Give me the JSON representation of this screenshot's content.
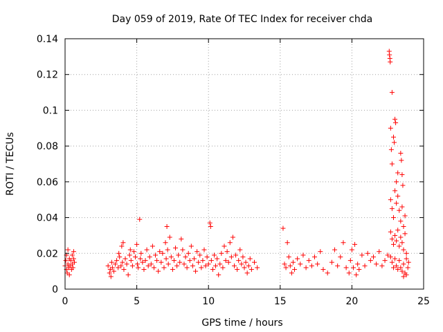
{
  "chart_data": {
    "type": "scatter",
    "title": "Day 059 of 2019, Rate Of TEC Index for receiver chda",
    "xlabel": "GPS time / hours",
    "ylabel": "ROTI / TECUs",
    "xlim": [
      0,
      25
    ],
    "ylim": [
      0,
      0.14
    ],
    "xticks": [
      "0",
      "5",
      "10",
      "15",
      "20",
      "25"
    ],
    "yticks": [
      "0",
      "0.02",
      "0.04",
      "0.06",
      "0.08",
      "0.1",
      "0.12",
      "0.14"
    ],
    "grid": true,
    "marker": "+",
    "colors": {
      "marker": "#ff0000",
      "grid": "#a0a0a0",
      "axes": "#000000"
    },
    "series": [
      {
        "points": [
          [
            0.0,
            0.013
          ],
          [
            0.05,
            0.016
          ],
          [
            0.1,
            0.011
          ],
          [
            0.1,
            0.019
          ],
          [
            0.15,
            0.009
          ],
          [
            0.2,
            0.014
          ],
          [
            0.2,
            0.022
          ],
          [
            0.25,
            0.012
          ],
          [
            0.3,
            0.017
          ],
          [
            0.3,
            0.008
          ],
          [
            0.35,
            0.013
          ],
          [
            0.4,
            0.016
          ],
          [
            0.45,
            0.011
          ],
          [
            0.5,
            0.019
          ],
          [
            0.5,
            0.014
          ],
          [
            0.55,
            0.012
          ],
          [
            0.6,
            0.017
          ],
          [
            0.6,
            0.021
          ],
          [
            0.65,
            0.015
          ],
          [
            3.0,
            0.013
          ],
          [
            3.1,
            0.009
          ],
          [
            3.15,
            0.011
          ],
          [
            3.2,
            0.007
          ],
          [
            3.25,
            0.015
          ],
          [
            3.3,
            0.012
          ],
          [
            3.4,
            0.01
          ],
          [
            3.5,
            0.014
          ],
          [
            3.6,
            0.016
          ],
          [
            3.7,
            0.012
          ],
          [
            3.75,
            0.02
          ],
          [
            3.8,
            0.018
          ],
          [
            3.9,
            0.013
          ],
          [
            3.95,
            0.024
          ],
          [
            4.0,
            0.015
          ],
          [
            4.05,
            0.026
          ],
          [
            4.1,
            0.011
          ],
          [
            4.2,
            0.017
          ],
          [
            4.3,
            0.014
          ],
          [
            4.4,
            0.008
          ],
          [
            4.5,
            0.019
          ],
          [
            4.55,
            0.022
          ],
          [
            4.6,
            0.016
          ],
          [
            4.7,
            0.013
          ],
          [
            4.8,
            0.021
          ],
          [
            4.9,
            0.018
          ],
          [
            5.0,
            0.025
          ],
          [
            5.05,
            0.014
          ],
          [
            5.1,
            0.012
          ],
          [
            5.2,
            0.039
          ],
          [
            5.25,
            0.017
          ],
          [
            5.3,
            0.02
          ],
          [
            5.4,
            0.015
          ],
          [
            5.5,
            0.011
          ],
          [
            5.6,
            0.016
          ],
          [
            5.7,
            0.022
          ],
          [
            5.8,
            0.013
          ],
          [
            5.9,
            0.018
          ],
          [
            6.0,
            0.014
          ],
          [
            6.1,
            0.024
          ],
          [
            6.2,
            0.012
          ],
          [
            6.3,
            0.019
          ],
          [
            6.4,
            0.016
          ],
          [
            6.5,
            0.01
          ],
          [
            6.6,
            0.021
          ],
          [
            6.7,
            0.015
          ],
          [
            6.8,
            0.02
          ],
          [
            6.9,
            0.012
          ],
          [
            7.0,
            0.026
          ],
          [
            7.05,
            0.017
          ],
          [
            7.1,
            0.035
          ],
          [
            7.15,
            0.022
          ],
          [
            7.2,
            0.014
          ],
          [
            7.3,
            0.029
          ],
          [
            7.4,
            0.018
          ],
          [
            7.5,
            0.011
          ],
          [
            7.6,
            0.016
          ],
          [
            7.7,
            0.023
          ],
          [
            7.8,
            0.013
          ],
          [
            7.9,
            0.019
          ],
          [
            8.0,
            0.015
          ],
          [
            8.1,
            0.028
          ],
          [
            8.2,
            0.022
          ],
          [
            8.3,
            0.014
          ],
          [
            8.4,
            0.018
          ],
          [
            8.5,
            0.012
          ],
          [
            8.6,
            0.02
          ],
          [
            8.7,
            0.016
          ],
          [
            8.8,
            0.024
          ],
          [
            8.9,
            0.013
          ],
          [
            9.0,
            0.017
          ],
          [
            9.1,
            0.01
          ],
          [
            9.2,
            0.021
          ],
          [
            9.3,
            0.015
          ],
          [
            9.4,
            0.019
          ],
          [
            9.5,
            0.012
          ],
          [
            9.6,
            0.016
          ],
          [
            9.7,
            0.022
          ],
          [
            9.8,
            0.013
          ],
          [
            9.9,
            0.018
          ],
          [
            10.0,
            0.014
          ],
          [
            10.1,
            0.037
          ],
          [
            10.15,
            0.035
          ],
          [
            10.2,
            0.016
          ],
          [
            10.3,
            0.011
          ],
          [
            10.4,
            0.019
          ],
          [
            10.5,
            0.013
          ],
          [
            10.6,
            0.017
          ],
          [
            10.7,
            0.008
          ],
          [
            10.8,
            0.014
          ],
          [
            10.9,
            0.02
          ],
          [
            11.0,
            0.012
          ],
          [
            11.1,
            0.024
          ],
          [
            11.2,
            0.016
          ],
          [
            11.3,
            0.021
          ],
          [
            11.4,
            0.015
          ],
          [
            11.5,
            0.026
          ],
          [
            11.6,
            0.018
          ],
          [
            11.7,
            0.029
          ],
          [
            11.8,
            0.013
          ],
          [
            11.9,
            0.019
          ],
          [
            12.0,
            0.011
          ],
          [
            12.1,
            0.016
          ],
          [
            12.2,
            0.022
          ],
          [
            12.3,
            0.014
          ],
          [
            12.4,
            0.018
          ],
          [
            12.5,
            0.012
          ],
          [
            12.6,
            0.015
          ],
          [
            12.7,
            0.009
          ],
          [
            12.8,
            0.013
          ],
          [
            12.9,
            0.017
          ],
          [
            13.0,
            0.011
          ],
          [
            13.2,
            0.015
          ],
          [
            13.4,
            0.012
          ],
          [
            15.2,
            0.034
          ],
          [
            15.3,
            0.014
          ],
          [
            15.4,
            0.012
          ],
          [
            15.5,
            0.026
          ],
          [
            15.6,
            0.018
          ],
          [
            15.7,
            0.013
          ],
          [
            15.8,
            0.009
          ],
          [
            15.9,
            0.015
          ],
          [
            16.0,
            0.011
          ],
          [
            16.2,
            0.017
          ],
          [
            16.4,
            0.014
          ],
          [
            16.6,
            0.019
          ],
          [
            16.8,
            0.012
          ],
          [
            17.0,
            0.016
          ],
          [
            17.2,
            0.013
          ],
          [
            17.4,
            0.018
          ],
          [
            17.6,
            0.014
          ],
          [
            17.8,
            0.021
          ],
          [
            18.0,
            0.011
          ],
          [
            18.3,
            0.009
          ],
          [
            18.6,
            0.015
          ],
          [
            18.8,
            0.022
          ],
          [
            19.0,
            0.013
          ],
          [
            19.2,
            0.018
          ],
          [
            19.4,
            0.026
          ],
          [
            19.6,
            0.012
          ],
          [
            19.8,
            0.009
          ],
          [
            19.9,
            0.016
          ],
          [
            20.0,
            0.022
          ],
          [
            20.1,
            0.012
          ],
          [
            20.2,
            0.025
          ],
          [
            20.3,
            0.008
          ],
          [
            20.4,
            0.014
          ],
          [
            20.5,
            0.011
          ],
          [
            20.7,
            0.019
          ],
          [
            20.9,
            0.013
          ],
          [
            21.1,
            0.02
          ],
          [
            21.3,
            0.016
          ],
          [
            21.5,
            0.018
          ],
          [
            21.7,
            0.014
          ],
          [
            21.9,
            0.021
          ],
          [
            22.1,
            0.013
          ],
          [
            22.3,
            0.016
          ],
          [
            22.5,
            0.019
          ],
          [
            22.6,
            0.133
          ],
          [
            22.62,
            0.131
          ],
          [
            22.65,
            0.129
          ],
          [
            22.67,
            0.127
          ],
          [
            22.8,
            0.11
          ],
          [
            22.7,
            0.09
          ],
          [
            22.75,
            0.078
          ],
          [
            22.8,
            0.07
          ],
          [
            22.9,
            0.085
          ],
          [
            22.95,
            0.082
          ],
          [
            23.0,
            0.095
          ],
          [
            23.05,
            0.093
          ],
          [
            23.1,
            0.06
          ],
          [
            23.2,
            0.065
          ],
          [
            23.4,
            0.076
          ],
          [
            23.45,
            0.072
          ],
          [
            23.5,
            0.064
          ],
          [
            23.55,
            0.058
          ],
          [
            22.7,
            0.05
          ],
          [
            22.8,
            0.045
          ],
          [
            22.9,
            0.04
          ],
          [
            23.0,
            0.055
          ],
          [
            23.1,
            0.048
          ],
          [
            23.2,
            0.052
          ],
          [
            23.3,
            0.044
          ],
          [
            23.4,
            0.038
          ],
          [
            23.5,
            0.046
          ],
          [
            23.6,
            0.035
          ],
          [
            23.7,
            0.041
          ],
          [
            22.7,
            0.032
          ],
          [
            22.8,
            0.028
          ],
          [
            22.9,
            0.025
          ],
          [
            23.0,
            0.03
          ],
          [
            23.1,
            0.027
          ],
          [
            23.2,
            0.033
          ],
          [
            23.3,
            0.024
          ],
          [
            23.4,
            0.029
          ],
          [
            23.5,
            0.026
          ],
          [
            23.6,
            0.022
          ],
          [
            23.7,
            0.031
          ],
          [
            23.8,
            0.02
          ],
          [
            22.7,
            0.018
          ],
          [
            22.8,
            0.015
          ],
          [
            22.9,
            0.012
          ],
          [
            23.0,
            0.017
          ],
          [
            23.1,
            0.013
          ],
          [
            23.2,
            0.011
          ],
          [
            23.3,
            0.016
          ],
          [
            23.4,
            0.012
          ],
          [
            23.5,
            0.01
          ],
          [
            23.6,
            0.014
          ],
          [
            23.7,
            0.009
          ],
          [
            23.8,
            0.017
          ],
          [
            23.9,
            0.012
          ],
          [
            23.95,
            0.015
          ],
          [
            23.6,
            0.007
          ],
          [
            23.8,
            0.008
          ]
        ]
      }
    ]
  }
}
